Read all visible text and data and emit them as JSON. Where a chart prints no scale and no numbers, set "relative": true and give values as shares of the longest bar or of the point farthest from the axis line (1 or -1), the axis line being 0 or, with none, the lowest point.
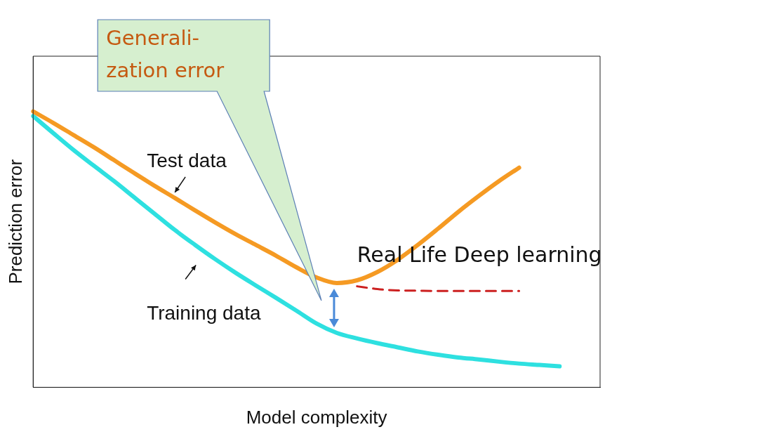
{
  "chart_data": {
    "type": "line",
    "relative": true,
    "xlabel": "Model complexity",
    "ylabel": "Prediction error",
    "annotations": [
      "Generali-\nzation error"
    ],
    "legend": false,
    "grid": false,
    "marker": "none",
    "categories": [
      null,
      null,
      null,
      null,
      null,
      null,
      null,
      null,
      null,
      null,
      null,
      null,
      null,
      null,
      null,
      null,
      null,
      null,
      null,
      null,
      null,
      null,
      null,
      null,
      null,
      null,
      null,
      null,
      null
    ],
    "series": [
      {
        "name": "Test data",
        "color": "#f59a23",
        "values": [
          1.0,
          0.958,
          0.914,
          0.87,
          0.823,
          0.776,
          0.73,
          0.686,
          0.641,
          0.597,
          0.555,
          0.516,
          0.477,
          0.435,
          0.398,
          0.378,
          0.388,
          0.418,
          0.462,
          0.516,
          0.575,
          0.636,
          0.693,
          0.747,
          0.796,
          null,
          null,
          null,
          null
        ]
      },
      {
        "name": "Training data",
        "color": "#2ee0e0",
        "values": [
          0.983,
          0.921,
          0.86,
          0.803,
          0.747,
          0.688,
          0.629,
          0.57,
          0.516,
          0.464,
          0.415,
          0.369,
          0.324,
          0.278,
          0.231,
          0.197,
          0.177,
          0.16,
          0.145,
          0.13,
          0.118,
          0.108,
          0.101,
          0.093,
          0.086,
          0.081,
          0.076,
          null,
          null
        ]
      },
      {
        "name": "Real Life Deep learning",
        "color": "#cc2020",
        "line_style": "dashed",
        "values": [
          null,
          null,
          null,
          null,
          null,
          null,
          null,
          null,
          null,
          null,
          null,
          null,
          null,
          null,
          null,
          null,
          0.366,
          0.356,
          0.351,
          0.35,
          0.349,
          0.349,
          0.349,
          0.349,
          0.349,
          null,
          null,
          null,
          null
        ]
      }
    ]
  }
}
